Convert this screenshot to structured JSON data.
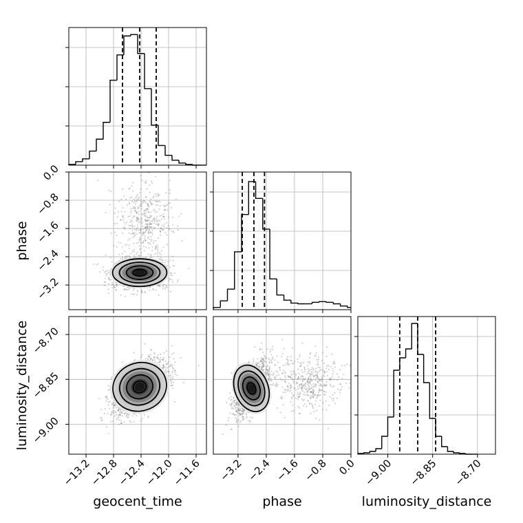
{
  "chart_data": {
    "type": "corner",
    "parameters": [
      "geocent_time",
      "phase",
      "luminosity_distance"
    ],
    "axis_labels": {
      "geocent_time": "geocent_time",
      "phase": "phase",
      "luminosity_distance": "luminosity_distance"
    },
    "ranges": {
      "geocent_time": [
        -13.45,
        -11.45
      ],
      "phase": [
        -3.9,
        0.0
      ],
      "luminosity_distance": [
        -9.1,
        -8.64
      ]
    },
    "ticks": {
      "geocent_time": [
        {
          "v": -13.2,
          "label": "−13.2"
        },
        {
          "v": -12.8,
          "label": "−12.8"
        },
        {
          "v": -12.4,
          "label": "−12.4"
        },
        {
          "v": -12.0,
          "label": "−12.0"
        },
        {
          "v": -11.6,
          "label": "−11.6"
        }
      ],
      "phase": [
        {
          "v": -3.2,
          "label": "−3.2"
        },
        {
          "v": -2.4,
          "label": "−2.4"
        },
        {
          "v": -1.6,
          "label": "−1.6"
        },
        {
          "v": -0.8,
          "label": "−0.8"
        },
        {
          "v": 0.0,
          "label": "0.0"
        }
      ],
      "luminosity_distance": [
        {
          "v": -9.0,
          "label": "−9.00"
        },
        {
          "v": -8.85,
          "label": "−8.85"
        },
        {
          "v": -8.7,
          "label": "−8.70"
        }
      ]
    },
    "histograms": {
      "geocent_time": {
        "edges": [
          -13.45,
          -13.35,
          -13.25,
          -13.15,
          -13.05,
          -12.95,
          -12.85,
          -12.75,
          -12.65,
          -12.55,
          -12.45,
          -12.35,
          -12.25,
          -12.15,
          -12.05,
          -11.95,
          -11.85,
          -11.75,
          -11.65,
          -11.55,
          -11.45
        ],
        "counts": [
          1,
          5,
          9,
          20,
          37,
          61,
          121,
          157,
          184,
          186,
          159,
          109,
          57,
          28,
          14,
          7,
          3,
          1,
          0,
          0
        ],
        "quantiles": [
          -12.67,
          -12.42,
          -12.18
        ],
        "ymax": 196
      },
      "phase": {
        "edges": [
          -3.9,
          -3.7,
          -3.5,
          -3.3,
          -3.1,
          -2.9,
          -2.7,
          -2.5,
          -2.3,
          -2.1,
          -1.9,
          -1.7,
          -1.5,
          -1.3,
          -1.1,
          -0.9,
          -0.7,
          -0.5,
          -0.3,
          -0.1,
          0.0
        ],
        "counts": [
          3,
          12,
          28,
          79,
          130,
          175,
          152,
          110,
          42,
          20,
          13,
          9,
          8,
          8,
          10,
          11,
          10,
          8,
          5,
          3
        ],
        "quantiles": [
          -3.08,
          -2.75,
          -2.45
        ],
        "ymax": 188
      },
      "luminosity_distance": {
        "edges": [
          -9.1,
          -9.08,
          -9.06,
          -9.04,
          -9.02,
          -9.0,
          -8.98,
          -8.96,
          -8.94,
          -8.92,
          -8.9,
          -8.88,
          -8.86,
          -8.84,
          -8.82,
          -8.8,
          -8.78,
          -8.76,
          -8.74,
          -8.72,
          -8.7
        ],
        "counts": [
          1,
          2,
          4,
          8,
          26,
          54,
          122,
          140,
          153,
          190,
          145,
          104,
          52,
          26,
          11,
          4,
          2,
          1,
          0,
          0
        ],
        "quantiles": [
          -8.96,
          -8.9,
          -8.84
        ],
        "ymax": 200
      }
    },
    "joint": [
      {
        "x": "geocent_time",
        "y": "phase",
        "center": [
          -12.42,
          -2.85
        ],
        "spread": [
          0.2,
          0.22
        ],
        "rho": 0.05,
        "tail": {
          "center": [
            -12.35,
            -1.4
          ],
          "spread": [
            0.2,
            0.55
          ],
          "weight": 0.25
        },
        "contour_levels": [
          0.5,
          1.0,
          1.5,
          2.0
        ]
      },
      {
        "x": "geocent_time",
        "y": "luminosity_distance",
        "center": [
          -12.42,
          -8.875
        ],
        "spread": [
          0.2,
          0.045
        ],
        "rho": 0.55,
        "contour_levels": [
          0.5,
          1.0,
          1.5,
          2.0
        ]
      },
      {
        "x": "phase",
        "y": "luminosity_distance",
        "center": [
          -2.82,
          -8.88
        ],
        "spread": [
          0.24,
          0.045
        ],
        "rho": 0.6,
        "tail": {
          "center": [
            -1.2,
            -8.86
          ],
          "spread": [
            0.5,
            0.05
          ],
          "weight": 0.25
        },
        "contour_levels": [
          0.5,
          1.0,
          1.5,
          2.0
        ]
      }
    ],
    "grid": true,
    "legend": "none"
  }
}
